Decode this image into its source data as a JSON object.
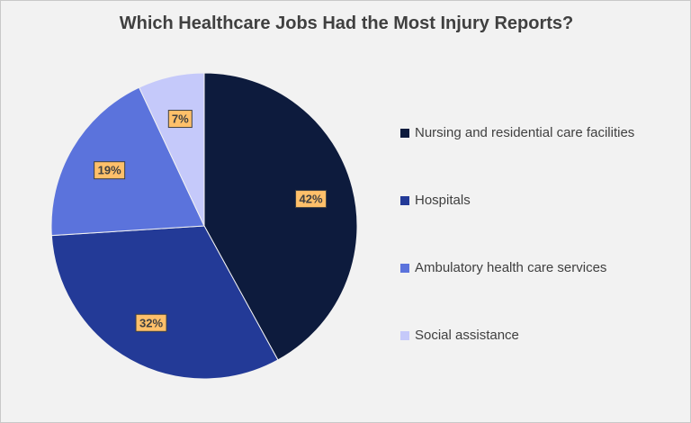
{
  "chart_data": {
    "type": "pie",
    "title": "Which Healthcare Jobs Had the Most Injury Reports?",
    "categories": [
      "Nursing and residential care facilities",
      "Hospitals",
      "Ambulatory health care services",
      "Social assistance"
    ],
    "values": [
      42,
      32,
      19,
      7
    ],
    "data_labels": [
      "42%",
      "32%",
      "19%",
      "7%"
    ],
    "colors": [
      "#0d1b3d",
      "#233a97",
      "#5b73dc",
      "#c5c9fa"
    ],
    "label_box_color": "#ffc06a",
    "legend_position": "right",
    "start_angle": "12 o'clock",
    "direction": "clockwise"
  }
}
